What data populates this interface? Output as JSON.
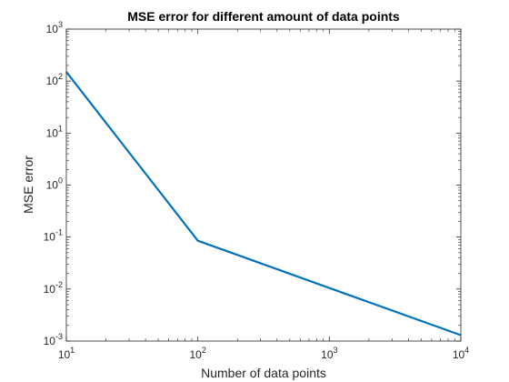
{
  "chart_data": {
    "type": "line",
    "title": "MSE error for different amount of data points",
    "xlabel": "Number of data points",
    "ylabel": "MSE error",
    "xscale": "log",
    "yscale": "log",
    "xlim": [
      10,
      10000
    ],
    "ylim": [
      0.001,
      1000
    ],
    "grid": false,
    "box": true,
    "x_ticks": [
      {
        "value": 10,
        "base": "10",
        "exp": "1"
      },
      {
        "value": 100,
        "base": "10",
        "exp": "2"
      },
      {
        "value": 1000,
        "base": "10",
        "exp": "3"
      },
      {
        "value": 10000,
        "base": "10",
        "exp": "4"
      }
    ],
    "y_ticks": [
      {
        "value": 0.001,
        "base": "10",
        "exp": "-3"
      },
      {
        "value": 0.01,
        "base": "10",
        "exp": "-2"
      },
      {
        "value": 0.1,
        "base": "10",
        "exp": "-1"
      },
      {
        "value": 1,
        "base": "10",
        "exp": "0"
      },
      {
        "value": 10,
        "base": "10",
        "exp": "1"
      },
      {
        "value": 100,
        "base": "10",
        "exp": "2"
      },
      {
        "value": 1000,
        "base": "10",
        "exp": "3"
      }
    ],
    "series": [
      {
        "color": "#0072BD",
        "x": [
          10,
          100,
          10000
        ],
        "y": [
          150,
          0.085,
          0.0013
        ]
      }
    ]
  }
}
